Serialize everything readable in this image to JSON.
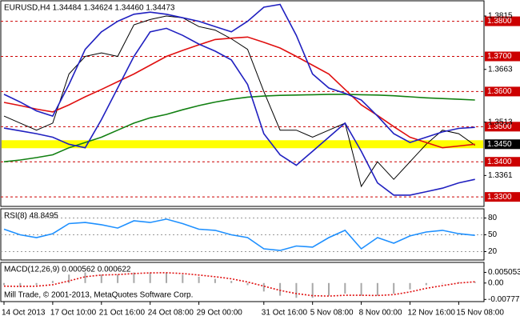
{
  "chart_data": [
    {
      "type": "line",
      "title": "EURUSD,H4 1.34484 1.34624 1.34460 1.34473",
      "categories": [
        "14 Oct 2013",
        null,
        null,
        "17 Oct 10:00",
        null,
        null,
        "21 Oct 16:00",
        null,
        null,
        "24 Oct 08:00",
        null,
        null,
        "29 Oct 00:00",
        null,
        null,
        null,
        "31 Oct 16:00",
        null,
        null,
        "5 Nov 08:00",
        null,
        null,
        "8 Nov 00:00",
        null,
        null,
        "12 Nov 16:00",
        null,
        null,
        "15 Nov 08:00",
        null
      ],
      "series": [
        {
          "color": "#000000",
          "values": [
            1.353,
            1.351,
            1.349,
            1.351,
            1.365,
            1.37,
            1.371,
            1.37,
            1.379,
            1.3805,
            1.3815,
            1.381,
            1.3785,
            1.3775,
            1.375,
            1.372,
            1.36,
            1.349,
            1.349,
            1.347,
            1.349,
            1.351,
            1.333,
            1.34,
            1.335,
            1.34,
            1.345,
            1.349,
            1.348,
            1.3447
          ]
        },
        {
          "color": "#e01010",
          "values": [
            1.3569,
            1.356,
            1.355,
            1.3542,
            1.3562,
            1.3585,
            1.3606,
            1.3628,
            1.365,
            1.3675,
            1.37,
            1.3717,
            1.3733,
            1.3748,
            1.3752,
            1.3755,
            1.374,
            1.3724,
            1.37,
            1.3675,
            1.365,
            1.3606,
            1.3562,
            1.3532,
            1.35,
            1.347,
            1.3455,
            1.344,
            1.3445,
            1.345
          ]
        },
        {
          "color": "#128012",
          "values": [
            1.34,
            1.3405,
            1.3412,
            1.342,
            1.344,
            1.3455,
            1.347,
            1.349,
            1.351,
            1.3525,
            1.3535,
            1.3548,
            1.356,
            1.357,
            1.3578,
            1.3584,
            1.3587,
            1.3589,
            1.359,
            1.3591,
            1.3592,
            1.3592,
            1.3591,
            1.359,
            1.3588,
            1.3585,
            1.3582,
            1.358,
            1.3578,
            1.3576
          ]
        },
        {
          "color": "#2020c0",
          "values": [
            1.3592,
            1.357,
            1.3545,
            1.353,
            1.362,
            1.372,
            1.377,
            1.38,
            1.382,
            1.3826,
            1.382,
            1.381,
            1.38,
            1.3785,
            1.377,
            1.38,
            1.384,
            1.3848,
            1.376,
            1.365,
            1.361,
            1.3595,
            1.3576,
            1.353,
            1.348,
            1.3455,
            1.347,
            1.3485,
            1.3495,
            1.3498
          ]
        },
        {
          "color": "#2020c0",
          "values": [
            1.3496,
            1.3488,
            1.348,
            1.347,
            1.345,
            1.344,
            1.352,
            1.361,
            1.37,
            1.377,
            1.378,
            1.376,
            1.3735,
            1.3715,
            1.369,
            1.362,
            1.348,
            1.342,
            1.339,
            1.343,
            1.347,
            1.351,
            1.343,
            1.334,
            1.3305,
            1.3305,
            1.3315,
            1.3325,
            1.334,
            1.335
          ]
        }
      ],
      "ylim": [
        1.3273,
        1.3856
      ],
      "yticks": [
        1.3815,
        1.3663,
        1.3513,
        1.3361
      ],
      "levels": [
        {
          "value": 1.38,
          "label": "1.3800",
          "color": "#cc0000",
          "box": "#cc0000"
        },
        {
          "value": 1.37,
          "label": "1.3700",
          "color": "#cc0000",
          "box": "#cc0000"
        },
        {
          "value": 1.36,
          "label": "1.3600",
          "color": "#cc0000",
          "box": "#cc0000"
        },
        {
          "value": 1.35,
          "label": "1.3500",
          "color": "#cc0000",
          "box": "#cc0000"
        },
        {
          "value": 1.345,
          "label": "1.3450",
          "color": "#ffff00",
          "box": "#000000"
        },
        {
          "value": 1.34,
          "label": "1.3400",
          "color": "#cc0000",
          "box": "#cc0000"
        },
        {
          "value": 1.33,
          "label": "1.3300",
          "color": "#cc0000",
          "box": "#cc0000"
        }
      ]
    },
    {
      "type": "line",
      "title": "RSI(8) 48.8495",
      "series": [
        {
          "color": "#1e90ff",
          "values": [
            60,
            50,
            45,
            52,
            70,
            72,
            68,
            62,
            75,
            72,
            78,
            70,
            60,
            58,
            50,
            45,
            25,
            22,
            30,
            28,
            45,
            58,
            25,
            45,
            35,
            48,
            55,
            58,
            52,
            49
          ]
        }
      ],
      "ylim": [
        5,
        95
      ],
      "yticks": [
        80,
        50,
        20
      ],
      "grid": true
    },
    {
      "type": "bar",
      "title": "MACD(12,26,9) 0.000562 0.000622",
      "annotation": "Mill Trade, © 2001-2013, MetaQuotes Software Corp.",
      "color": "#a8a8a8",
      "values": [
        -0.001,
        -0.002,
        -0.001,
        0.001,
        0.004,
        0.005,
        0.004,
        0.004,
        0.005,
        0.005,
        0.005,
        0.004,
        0.003,
        0.002,
        0.001,
        -0.001,
        -0.004,
        -0.006,
        -0.007,
        -0.007,
        -0.006,
        -0.005,
        -0.006,
        -0.006,
        -0.005,
        -0.003,
        -0.001,
        0.0,
        0.0005,
        0.00056
      ],
      "series": [
        {
          "color": "#e01010",
          "values": [
            -0.0015,
            -0.0016,
            -0.0015,
            -0.0008,
            0.001,
            0.003,
            0.0038,
            0.004,
            0.0045,
            0.0048,
            0.0049,
            0.0045,
            0.0038,
            0.003,
            0.002,
            0.0005,
            -0.0015,
            -0.0035,
            -0.005,
            -0.006,
            -0.0062,
            -0.0058,
            -0.0058,
            -0.0059,
            -0.0055,
            -0.0042,
            -0.0025,
            -0.0012,
            0.0,
            0.00062
          ]
        }
      ],
      "ylim": [
        -0.0088,
        0.0094
      ],
      "yticks": [
        0.005053,
        {
          "value": 0,
          "label": "0.00"
        },
        -0.007775
      ]
    }
  ]
}
